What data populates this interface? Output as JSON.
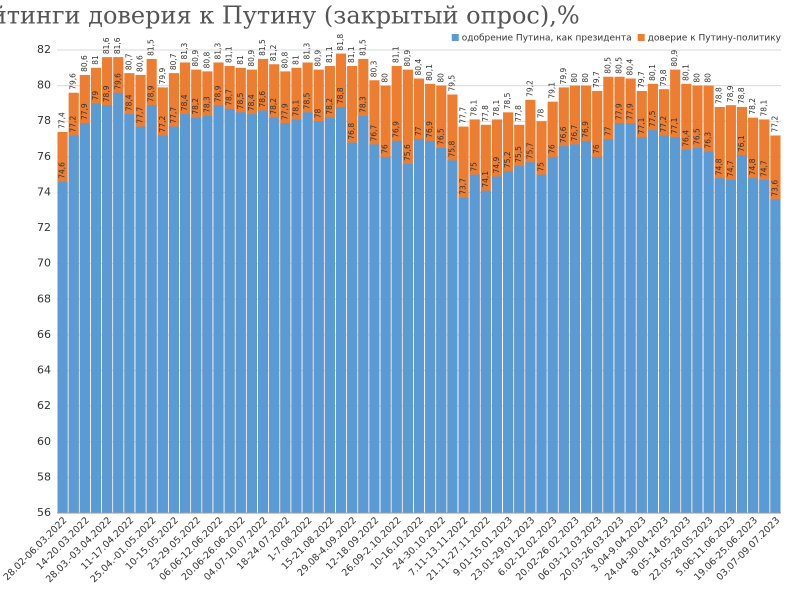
{
  "chart_data": {
    "type": "bar",
    "title": "Рейтинги доверия к Путину (закрытый опрос),%",
    "categories": [
      "28.02-06.03.2022",
      null,
      "14-20.03.2022",
      null,
      "28.03.-03.04.2022",
      null,
      "11-17.04.2022",
      null,
      "25.04.-01.05.2022",
      null,
      "10-15.05.2022",
      null,
      "23-29.05.2022",
      null,
      "06.06-12.06.2022",
      null,
      "20.06-26.06.2022",
      null,
      "04.07-10.07.2022",
      null,
      "18-24.07.2022",
      null,
      "1-7.08.2022",
      null,
      "15-21.08.2022",
      null,
      "29.08-4.09.2022",
      null,
      "12-18.09.2022",
      null,
      "26.09-2.10.2022",
      null,
      "10-16.10.2022",
      null,
      "24-30.10.2022",
      null,
      "7.11-13.11.2022",
      null,
      "21.11-27.11.2022",
      null,
      "9.01-15.01.2023",
      null,
      "23.01-29.01.2023",
      null,
      "6.02-12.02.2023",
      null,
      "20.02-26.02.2023",
      null,
      "06.03-12.03.2023",
      null,
      "20.03-26.03.2023",
      null,
      "3.04-9.04.2023",
      null,
      "24.04-30.04.2023",
      null,
      "8.05-14.05.2023",
      null,
      "22.05-28.05.2023",
      null,
      "5.06-11.06.2023",
      null,
      "19.06-25.06.2023",
      null,
      "03.07-09.07.2023"
    ],
    "series": [
      {
        "name": "доверие к Путину-политику",
        "color": "#ed7d31",
        "values": [
          77.4,
          79.6,
          80.6,
          81,
          81.6,
          81.6,
          80.7,
          80.6,
          81.5,
          79.9,
          80.7,
          81.3,
          80.9,
          80.8,
          81.3,
          81.1,
          81,
          80.9,
          81.5,
          81.2,
          80.8,
          81,
          81.3,
          80.9,
          81.1,
          81.8,
          81.1,
          81.5,
          80.3,
          80,
          81.1,
          80.9,
          80.4,
          80.1,
          80,
          79.5,
          77.7,
          78.1,
          77.8,
          78.1,
          78.5,
          77.8,
          79.2,
          78,
          79.1,
          79.9,
          80,
          80,
          79.7,
          80.5,
          80.5,
          80.4,
          79.7,
          80.1,
          79.8,
          80.9,
          80.1,
          80,
          80,
          78.8,
          78.9,
          78.8,
          78.2,
          78.1,
          77.2
        ],
        "value_labels": [
          "77,4",
          "79,6",
          "80,6",
          "81",
          "81,6",
          "81,6",
          "80,7",
          "80,6",
          "81,5",
          "79,9",
          "80,7",
          "81,3",
          "80,9",
          "80,8",
          "81,3",
          "81,1",
          "81",
          "80,9",
          "81,5",
          "81,2",
          "80,8",
          "81",
          "81,3",
          "80,9",
          "81,1",
          "81,8",
          "81,1",
          "81,5",
          "80,3",
          "80",
          "81,1",
          "80,9",
          "80,4",
          "80,1",
          "80",
          "79,5",
          "77,7",
          "78,1",
          "77,8",
          "78,1",
          "78,5",
          "77,8",
          "79,2",
          "78",
          "79,1",
          "79,9",
          "80",
          "80",
          "79,7",
          "80,5",
          "80,5",
          "80,4",
          "79,7",
          "80,1",
          "79,8",
          "80,9",
          "80,1",
          "80",
          "80",
          "78,8",
          "78,9",
          "78,8",
          "78,2",
          "78,1",
          "77,2"
        ]
      },
      {
        "name": "одобрение Путина, как президента",
        "color": "#5b9bd5",
        "values": [
          74.6,
          77.2,
          77.9,
          79,
          78.9,
          79.6,
          78.4,
          77.7,
          78.9,
          77.2,
          77.7,
          78.4,
          78.2,
          78.3,
          78.9,
          78.7,
          78.5,
          78.4,
          78.6,
          78.2,
          77.9,
          78.1,
          78.5,
          78,
          78.2,
          78.8,
          76.8,
          78.3,
          76.7,
          76,
          76.9,
          75.6,
          77,
          76.9,
          76.5,
          75.8,
          73.7,
          75,
          74.1,
          74.9,
          75.2,
          75.5,
          75.7,
          75,
          76,
          76.6,
          76.7,
          76.9,
          76,
          77,
          77.9,
          77.9,
          77.1,
          77.5,
          77.2,
          77.1,
          76.4,
          76.5,
          76.3,
          74.8,
          74.7,
          76.1,
          74.8,
          74.7,
          73.6
        ],
        "value_labels": [
          "74,6",
          "77,2",
          "77,9",
          "79",
          "78,9",
          "79,6",
          "78,4",
          "77,7",
          "78,9",
          "77,2",
          "77,7",
          "78,4",
          "78,2",
          "78,3",
          "78,9",
          "78,7",
          "78,5",
          "78,4",
          "78,6",
          "78,2",
          "77,9",
          "78,1",
          "78,5",
          "78",
          "78,2",
          "78,8",
          "76,8",
          "78,3",
          "76,7",
          "76",
          "76,9",
          "75,6",
          "77",
          "76,9",
          "76,5",
          "75,8",
          "73,7",
          "75",
          "74,1",
          "74,9",
          "75,2",
          "75,5",
          "75,7",
          "75",
          "76",
          "76,6",
          "76,7",
          "76,9",
          "76",
          "77",
          "77,9",
          "77,9",
          "77,1",
          "77,5",
          "77,2",
          "77,1",
          "76,4",
          "76,5",
          "76,3",
          "74,8",
          "74,7",
          "76,1",
          "74,8",
          "74,7",
          "73,6"
        ]
      }
    ],
    "ylim": [
      56,
      82
    ],
    "yticks": [
      56,
      58,
      60,
      62,
      64,
      66,
      68,
      70,
      72,
      74,
      76,
      78,
      80,
      82
    ],
    "grid": true,
    "legend": "top-right"
  }
}
